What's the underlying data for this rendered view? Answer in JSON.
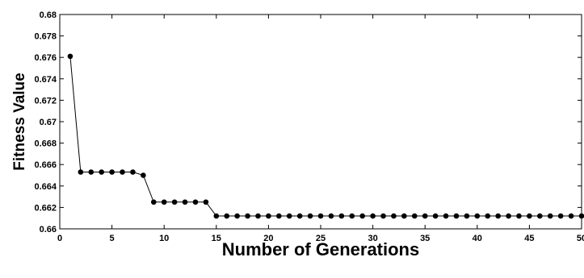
{
  "chart_data": {
    "type": "line",
    "title": "",
    "xlabel": "Number of Generations",
    "ylabel": "Fitness Value",
    "xlim": [
      0,
      50
    ],
    "ylim": [
      0.66,
      0.68
    ],
    "xticks": [
      "0",
      "5",
      "10",
      "15",
      "20",
      "25",
      "30",
      "35",
      "40",
      "45",
      "50"
    ],
    "yticks": [
      "0.66",
      "0.662",
      "0.664",
      "0.666",
      "0.668",
      "0.67",
      "0.672",
      "0.674",
      "0.676",
      "0.678",
      "0.68"
    ],
    "grid": false,
    "legend": "none",
    "marker": "filled-circle",
    "line_color": "#000000",
    "series": [
      {
        "x": [
          1,
          2,
          3,
          4,
          5,
          6,
          7,
          8,
          9,
          10,
          11,
          12,
          13,
          14,
          15,
          16,
          17,
          18,
          19,
          20,
          21,
          22,
          23,
          24,
          25,
          26,
          27,
          28,
          29,
          30,
          31,
          32,
          33,
          34,
          35,
          36,
          37,
          38,
          39,
          40,
          41,
          42,
          43,
          44,
          45,
          46,
          47,
          48,
          49,
          50
        ],
        "values": [
          0.6761,
          0.6653,
          0.6653,
          0.6653,
          0.6653,
          0.6653,
          0.6653,
          0.665,
          0.6625,
          0.6625,
          0.6625,
          0.6625,
          0.6625,
          0.6625,
          0.6612,
          0.6612,
          0.6612,
          0.6612,
          0.6612,
          0.6612,
          0.6612,
          0.6612,
          0.6612,
          0.6612,
          0.6612,
          0.6612,
          0.6612,
          0.6612,
          0.6612,
          0.6612,
          0.6612,
          0.6612,
          0.6612,
          0.6612,
          0.6612,
          0.6612,
          0.6612,
          0.6612,
          0.6612,
          0.6612,
          0.6612,
          0.6612,
          0.6612,
          0.6612,
          0.6612,
          0.6612,
          0.6612,
          0.6612,
          0.6612,
          0.6612
        ]
      }
    ]
  }
}
